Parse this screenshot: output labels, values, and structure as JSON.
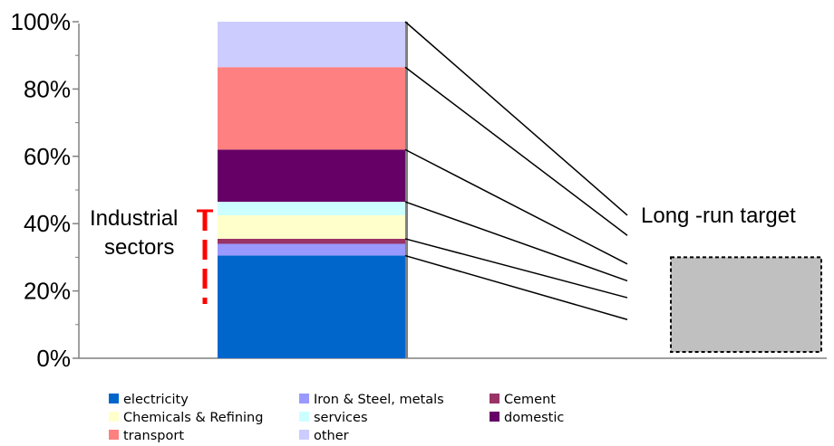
{
  "chart_data": {
    "type": "bar",
    "stacked": true,
    "ylim": [
      0,
      100
    ],
    "y_ticks": [
      "0%",
      "20%",
      "40%",
      "60%",
      "80%",
      "100%"
    ],
    "grid": false,
    "legend_position": "bottom",
    "series": [
      {
        "name": "electricity",
        "value": 30.5,
        "color": "#0066CC"
      },
      {
        "name": "Iron & Steel, metals",
        "value": 3.5,
        "color": "#9999FF"
      },
      {
        "name": "Cement",
        "value": 1.5,
        "color": "#993366"
      },
      {
        "name": "Chemicals & Refining",
        "value": 7,
        "color": "#FFFFCC"
      },
      {
        "name": "services",
        "value": 4,
        "color": "#CCFFFF"
      },
      {
        "name": "domestic",
        "value": 15.5,
        "color": "#660066"
      },
      {
        "name": "transport",
        "value": 24.5,
        "color": "#FF8080"
      },
      {
        "name": "other",
        "value": 13.5,
        "color": "#CCCCFF"
      }
    ],
    "target_bar": {
      "label": "Long -run target",
      "value": 30,
      "color": "#C0C0C0"
    },
    "target_line_ends": [
      11.5,
      18,
      23,
      28,
      36.5,
      42.5
    ],
    "annotation": {
      "text_line1": "Industrial",
      "text_line2": "sectors",
      "color": "#FF0000"
    }
  }
}
